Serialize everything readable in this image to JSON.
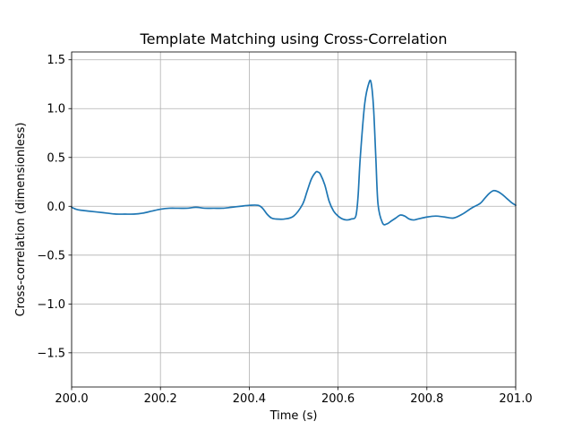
{
  "chart_data": {
    "type": "line",
    "title": "Template Matching using Cross-Correlation",
    "xlabel": "Time (s)",
    "ylabel": "Cross-correlation (dimensionless)",
    "xlim": [
      200.0,
      201.0
    ],
    "ylim": [
      -1.85,
      1.58
    ],
    "grid": true,
    "xticks": [
      200.0,
      200.2,
      200.4,
      200.6,
      200.8,
      201.0
    ],
    "xtick_labels": [
      "200.0",
      "200.2",
      "200.4",
      "200.6",
      "200.8",
      "201.0"
    ],
    "yticks": [
      -1.5,
      -1.0,
      -0.5,
      0.0,
      0.5,
      1.0,
      1.5
    ],
    "ytick_labels": [
      "−1.5",
      "−1.0",
      "−0.5",
      "0.0",
      "0.5",
      "1.0",
      "1.5"
    ],
    "series": [
      {
        "color": "#1f77b4",
        "x": [
          200.0,
          200.01,
          200.02,
          200.04,
          200.06,
          200.08,
          200.1,
          200.12,
          200.14,
          200.16,
          200.18,
          200.2,
          200.22,
          200.24,
          200.26,
          200.28,
          200.3,
          200.32,
          200.34,
          200.36,
          200.38,
          200.4,
          200.42,
          200.43,
          200.44,
          200.45,
          200.46,
          200.48,
          200.5,
          200.52,
          200.53,
          200.54,
          200.55,
          200.555,
          200.56,
          200.57,
          200.58,
          200.59,
          200.6,
          200.61,
          200.62,
          200.63,
          200.64,
          200.645,
          200.65,
          200.66,
          200.67,
          200.675,
          200.68,
          200.685,
          200.69,
          200.7,
          200.71,
          200.72,
          200.73,
          200.74,
          200.75,
          200.76,
          200.77,
          200.78,
          200.8,
          200.82,
          200.84,
          200.86,
          200.88,
          200.9,
          200.92,
          200.93,
          200.94,
          200.95,
          200.96,
          200.97,
          200.98,
          200.99,
          201.0
        ],
        "y": [
          -0.01,
          -0.03,
          -0.04,
          -0.05,
          -0.06,
          -0.07,
          -0.08,
          -0.08,
          -0.08,
          -0.07,
          -0.05,
          -0.03,
          -0.02,
          -0.02,
          -0.02,
          -0.01,
          -0.02,
          -0.02,
          -0.02,
          -0.01,
          0.0,
          0.01,
          0.01,
          -0.02,
          -0.08,
          -0.12,
          -0.13,
          -0.13,
          -0.1,
          0.02,
          0.15,
          0.28,
          0.35,
          0.35,
          0.33,
          0.22,
          0.05,
          -0.05,
          -0.1,
          -0.13,
          -0.14,
          -0.13,
          -0.1,
          0.1,
          0.5,
          1.05,
          1.27,
          1.25,
          1.0,
          0.5,
          0.02,
          -0.17,
          -0.18,
          -0.15,
          -0.12,
          -0.09,
          -0.1,
          -0.13,
          -0.14,
          -0.13,
          -0.11,
          -0.1,
          -0.11,
          -0.12,
          -0.08,
          -0.02,
          0.03,
          0.08,
          0.13,
          0.16,
          0.15,
          0.12,
          0.08,
          0.04,
          0.01
        ]
      }
    ]
  }
}
